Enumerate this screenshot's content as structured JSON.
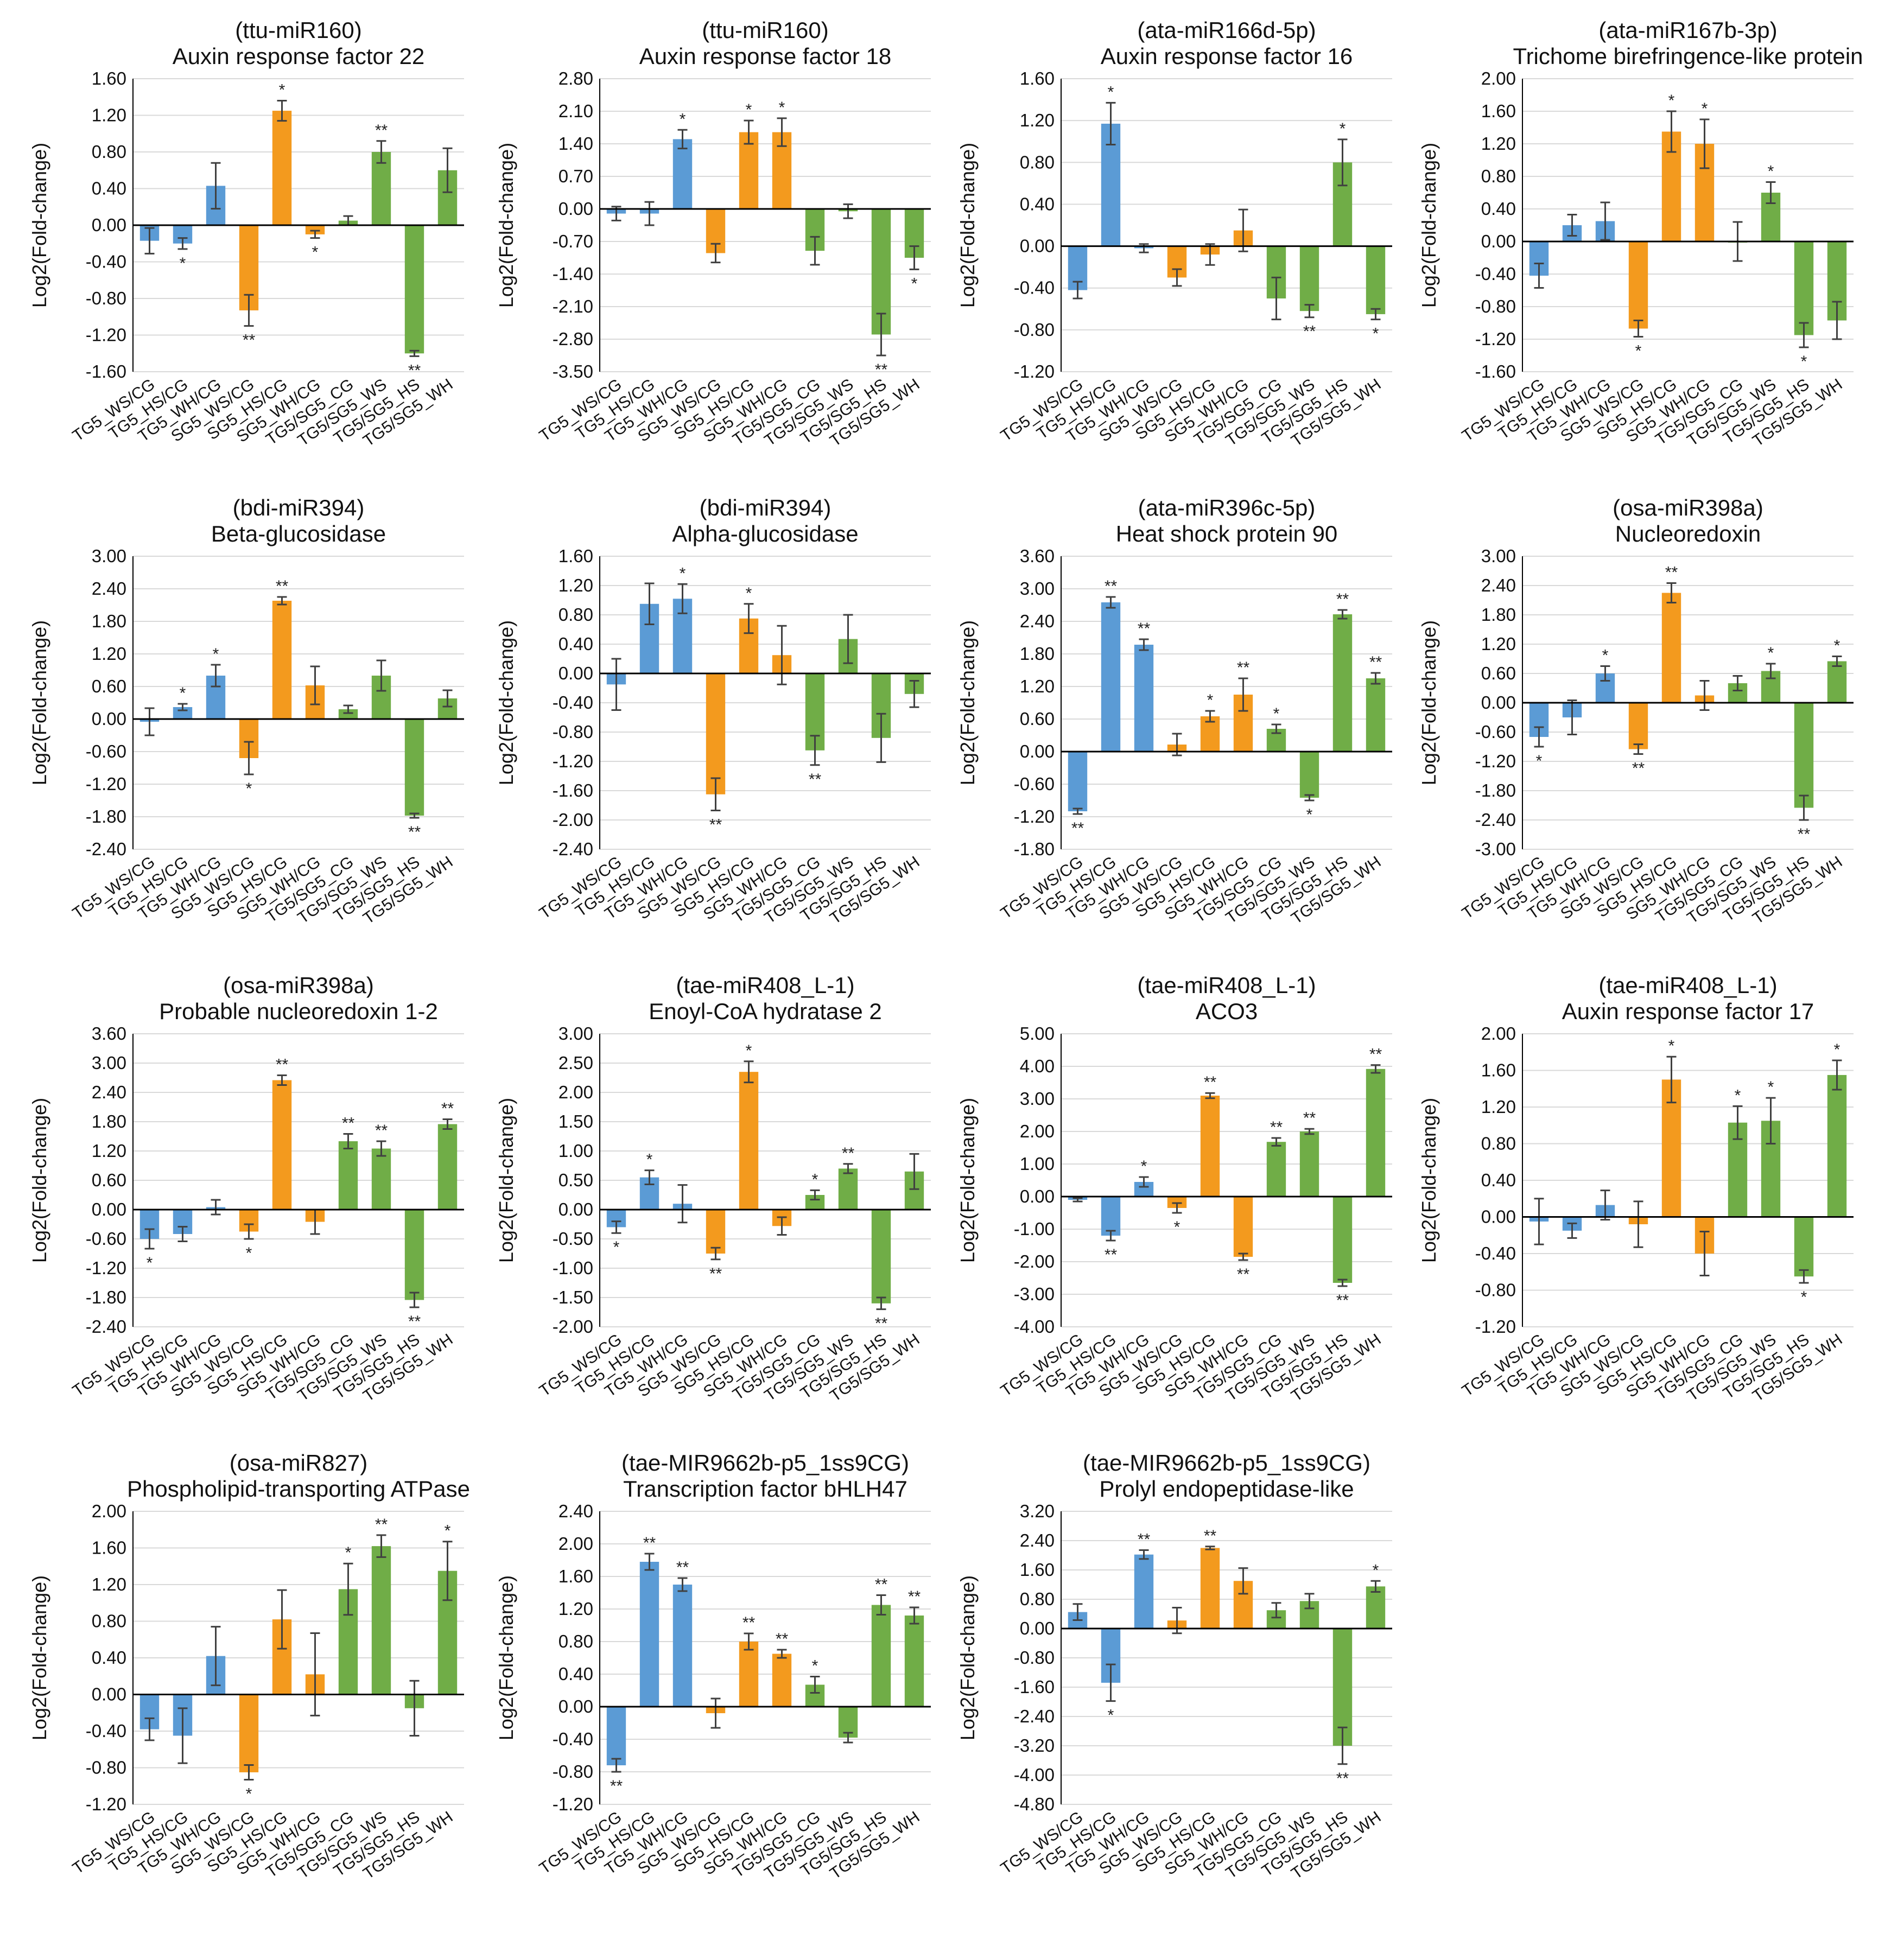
{
  "colors": {
    "blue": "#5B9BD5",
    "orange": "#F39A1E",
    "green": "#70AD47"
  },
  "ylabel": "Log2(Fold-change)",
  "chart_data": [
    {
      "type": "bar",
      "mirna": "(ttu-miR160)",
      "gene": "Auxin  response factor 22",
      "ylabel": "Log2(Fold-change)",
      "ylim": [
        -1.6,
        1.6
      ],
      "yticks": [
        "1.60",
        "1.20",
        "0.80",
        "0.40",
        "0.00",
        "-0.40",
        "-0.80",
        "-1.20",
        "-1.60"
      ],
      "categories": [
        "TG5_WS/CG",
        "TG5_HS/CG",
        "TG5_WH/CG",
        "SG5_WS/CG",
        "SG5_HS/CG",
        "SG5_WH/CG",
        "TG5/SG5_CG",
        "TG5/SG5_WS",
        "TG5/SG5_HS",
        "TG5/SG5_WH"
      ],
      "colors": [
        "blue",
        "blue",
        "blue",
        "orange",
        "orange",
        "orange",
        "green",
        "green",
        "green",
        "green"
      ],
      "values": [
        -0.17,
        -0.2,
        0.43,
        -0.93,
        1.25,
        -0.1,
        0.05,
        0.8,
        -1.4,
        0.6
      ],
      "errors": [
        0.14,
        0.06,
        0.25,
        0.17,
        0.11,
        0.04,
        0.05,
        0.12,
        0.03,
        0.24
      ],
      "sig": [
        "",
        "*",
        "",
        "**",
        "*",
        "*",
        "",
        "**",
        "**",
        ""
      ]
    },
    {
      "type": "bar",
      "mirna": "(ttu-miR160)",
      "gene": "Auxin  response factor 18",
      "ylabel": "Log2(Fold-change)",
      "ylim": [
        -3.5,
        2.8
      ],
      "yticks": [
        "2.80",
        "2.10",
        "1.40",
        "0.70",
        "0.00",
        "-0.70",
        "-1.40",
        "-2.10",
        "-2.80",
        "-3.50"
      ],
      "categories": [
        "TG5_WS/CG",
        "TG5_HS/CG",
        "TG5_WH/CG",
        "SG5_WS/CG",
        "SG5_HS/CG",
        "SG5_WH/CG",
        "TG5/SG5_CG",
        "TG5/SG5_WS",
        "TG5/SG5_HS",
        "TG5/SG5_WH"
      ],
      "colors": [
        "blue",
        "blue",
        "blue",
        "orange",
        "orange",
        "orange",
        "green",
        "green",
        "green",
        "green"
      ],
      "values": [
        -0.1,
        -0.1,
        1.5,
        -0.95,
        1.65,
        1.65,
        -0.9,
        -0.05,
        -2.7,
        -1.05
      ],
      "errors": [
        0.15,
        0.25,
        0.2,
        0.2,
        0.25,
        0.3,
        0.3,
        0.15,
        0.45,
        0.25
      ],
      "sig": [
        "",
        "",
        "*",
        "",
        "*",
        "*",
        "",
        "",
        "**",
        "*"
      ]
    },
    {
      "type": "bar",
      "mirna": "(ata-miR166d-5p)",
      "gene": "Auxin  response factor 16",
      "ylabel": "Log2(Fold-change)",
      "ylim": [
        -1.2,
        1.6
      ],
      "yticks": [
        "1.60",
        "1.20",
        "0.80",
        "0.40",
        "0.00",
        "-0.40",
        "-0.80",
        "-1.20"
      ],
      "categories": [
        "TG5_WS/CG",
        "TG5_HS/CG",
        "TG5_WH/CG",
        "SG5_WS/CG",
        "SG5_HS/CG",
        "SG5_WH/CG",
        "TG5/SG5_CG",
        "TG5/SG5_WS",
        "TG5/SG5_HS",
        "TG5/SG5_WH"
      ],
      "colors": [
        "blue",
        "blue",
        "blue",
        "orange",
        "orange",
        "orange",
        "green",
        "green",
        "green",
        "green"
      ],
      "values": [
        -0.42,
        1.17,
        -0.02,
        -0.3,
        -0.08,
        0.15,
        -0.5,
        -0.62,
        0.8,
        -0.65
      ],
      "errors": [
        0.08,
        0.2,
        0.04,
        0.08,
        0.1,
        0.2,
        0.2,
        0.06,
        0.22,
        0.05
      ],
      "sig": [
        "",
        "*",
        "",
        "",
        "",
        "",
        "",
        "**",
        "*",
        "*"
      ]
    },
    {
      "type": "bar",
      "mirna": "(ata-miR167b-3p)",
      "gene": "Trichome birefringence-like protein",
      "ylabel": "Log2(Fold-change)",
      "ylim": [
        -1.6,
        2.0
      ],
      "yticks": [
        "2.00",
        "1.60",
        "1.20",
        "0.80",
        "0.40",
        "0.00",
        "-0.40",
        "-0.80",
        "-1.20",
        "-1.60"
      ],
      "categories": [
        "TG5_WS/CG",
        "TG5_HS/CG",
        "TG5_WH/CG",
        "SG5_WS/CG",
        "SG5_HS/CG",
        "SG5_WH/CG",
        "TG5/SG5_CG",
        "TG5/SG5_WS",
        "TG5/SG5_HS",
        "TG5/SG5_WH"
      ],
      "colors": [
        "blue",
        "blue",
        "blue",
        "orange",
        "orange",
        "orange",
        "green",
        "green",
        "green",
        "green"
      ],
      "values": [
        -0.42,
        0.2,
        0.25,
        -1.07,
        1.35,
        1.2,
        0.0,
        0.6,
        -1.15,
        -0.97
      ],
      "errors": [
        0.15,
        0.13,
        0.23,
        0.1,
        0.25,
        0.3,
        0.24,
        0.13,
        0.15,
        0.23
      ],
      "sig": [
        "",
        "",
        "",
        "*",
        "*",
        "*",
        "",
        "*",
        "*",
        ""
      ]
    },
    {
      "type": "bar",
      "mirna": "(bdi-miR394)",
      "gene": "Beta-glucosidase",
      "ylabel": "Log2(Fold-change)",
      "ylim": [
        -2.4,
        3.0
      ],
      "yticks": [
        "3.00",
        "2.40",
        "1.80",
        "1.20",
        "0.60",
        "0.00",
        "-0.60",
        "-1.20",
        "-1.80",
        "-2.40"
      ],
      "categories": [
        "TG5_WS/CG",
        "TG5_HS/CG",
        "TG5_WH/CG",
        "SG5_WS/CG",
        "SG5_HS/CG",
        "SG5_WH/CG",
        "TG5/SG5_CG",
        "TG5/SG5_WS",
        "TG5/SG5_HS",
        "TG5/SG5_WH"
      ],
      "colors": [
        "blue",
        "blue",
        "blue",
        "orange",
        "orange",
        "orange",
        "green",
        "green",
        "green",
        "green"
      ],
      "values": [
        -0.05,
        0.22,
        0.8,
        -0.72,
        2.18,
        0.62,
        0.18,
        0.8,
        -1.78,
        0.38
      ],
      "errors": [
        0.25,
        0.06,
        0.2,
        0.3,
        0.07,
        0.35,
        0.07,
        0.28,
        0.04,
        0.15
      ],
      "sig": [
        "",
        "*",
        "*",
        "*",
        "**",
        "",
        "",
        "",
        "**",
        ""
      ]
    },
    {
      "type": "bar",
      "mirna": "(bdi-miR394)",
      "gene": "Alpha-glucosidase",
      "ylabel": "Log2(Fold-change)",
      "ylim": [
        -2.4,
        1.6
      ],
      "yticks": [
        "1.60",
        "1.20",
        "0.80",
        "0.40",
        "0.00",
        "-0.40",
        "-0.80",
        "-1.20",
        "-1.60",
        "-2.00",
        "-2.40"
      ],
      "categories": [
        "TG5_WS/CG",
        "TG5_HS/CG",
        "TG5_WH/CG",
        "SG5_WS/CG",
        "SG5_HS/CG",
        "SG5_WH/CG",
        "TG5/SG5_CG",
        "TG5/SG5_WS",
        "TG5/SG5_HS",
        "TG5/SG5_WH"
      ],
      "colors": [
        "blue",
        "blue",
        "blue",
        "orange",
        "orange",
        "orange",
        "green",
        "green",
        "green",
        "green"
      ],
      "values": [
        -0.15,
        0.95,
        1.02,
        -1.65,
        0.75,
        0.25,
        -1.05,
        0.47,
        -0.88,
        -0.28
      ],
      "errors": [
        0.35,
        0.28,
        0.2,
        0.22,
        0.2,
        0.4,
        0.2,
        0.33,
        0.33,
        0.18
      ],
      "sig": [
        "",
        "",
        "*",
        "**",
        "*",
        "",
        "**",
        "",
        "",
        ""
      ]
    },
    {
      "type": "bar",
      "mirna": "(ata-miR396c-5p)",
      "gene": "Heat shock protein 90",
      "ylabel": "Log2(Fold-change)",
      "ylim": [
        -1.8,
        3.6
      ],
      "yticks": [
        "3.60",
        "3.00",
        "2.40",
        "1.80",
        "1.20",
        "0.60",
        "0.00",
        "-0.60",
        "-1.20",
        "-1.80"
      ],
      "categories": [
        "TG5_WS/CG",
        "TG5_HS/CG",
        "TG5_WH/CG",
        "SG5_WS/CG",
        "SG5_HS/CG",
        "SG5_WH/CG",
        "TG5/SG5_CG",
        "TG5/SG5_WS",
        "TG5/SG5_HS",
        "TG5/SG5_WH"
      ],
      "colors": [
        "blue",
        "blue",
        "blue",
        "orange",
        "orange",
        "orange",
        "green",
        "green",
        "green",
        "green"
      ],
      "values": [
        -1.1,
        2.75,
        1.97,
        0.13,
        0.65,
        1.05,
        0.42,
        -0.85,
        2.53,
        1.35
      ],
      "errors": [
        0.05,
        0.1,
        0.1,
        0.2,
        0.1,
        0.3,
        0.08,
        0.05,
        0.08,
        0.1
      ],
      "sig": [
        "**",
        "**",
        "**",
        "",
        "*",
        "**",
        "*",
        "*",
        "**",
        "**"
      ]
    },
    {
      "type": "bar",
      "mirna": "(osa-miR398a)",
      "gene": "Nucleoredoxin",
      "ylabel": "Log2(Fold-change)",
      "ylim": [
        -3.0,
        3.0
      ],
      "yticks": [
        "3.00",
        "2.40",
        "1.80",
        "1.20",
        "0.60",
        "0.00",
        "-0.60",
        "-1.20",
        "-1.80",
        "-2.40",
        "-3.00"
      ],
      "categories": [
        "TG5_WS/CG",
        "TG5_HS/CG",
        "TG5_WH/CG",
        "SG5_WS/CG",
        "SG5_HS/CG",
        "SG5_WH/CG",
        "TG5/SG5_CG",
        "TG5/SG5_WS",
        "TG5/SG5_HS",
        "TG5/SG5_WH"
      ],
      "colors": [
        "blue",
        "blue",
        "blue",
        "orange",
        "orange",
        "orange",
        "green",
        "green",
        "green",
        "green"
      ],
      "values": [
        -0.7,
        -0.3,
        0.6,
        -0.95,
        2.25,
        0.15,
        0.4,
        0.65,
        -2.15,
        0.85
      ],
      "errors": [
        0.2,
        0.35,
        0.15,
        0.1,
        0.2,
        0.3,
        0.15,
        0.15,
        0.25,
        0.1
      ],
      "sig": [
        "*",
        "",
        "*",
        "**",
        "**",
        "",
        "",
        "*",
        "**",
        "*"
      ]
    },
    {
      "type": "bar",
      "mirna": "(osa-miR398a)",
      "gene": "Probable nucleoredoxin  1-2",
      "ylabel": "Log2(Fold-change)",
      "ylim": [
        -2.4,
        3.6
      ],
      "yticks": [
        "3.60",
        "3.00",
        "2.40",
        "1.80",
        "1.20",
        "0.60",
        "0.00",
        "-0.60",
        "-1.20",
        "-1.80",
        "-2.40"
      ],
      "categories": [
        "TG5_WS/CG",
        "TG5_HS/CG",
        "TG5_WH/CG",
        "SG5_WS/CG",
        "SG5_HS/CG",
        "SG5_WH/CG",
        "TG5/SG5_CG",
        "TG5/SG5_WS",
        "TG5/SG5_HS",
        "TG5/SG5_WH"
      ],
      "colors": [
        "blue",
        "blue",
        "blue",
        "orange",
        "orange",
        "orange",
        "green",
        "green",
        "green",
        "green"
      ],
      "values": [
        -0.6,
        -0.5,
        0.05,
        -0.45,
        2.65,
        -0.25,
        1.4,
        1.25,
        -1.85,
        1.75
      ],
      "errors": [
        0.2,
        0.15,
        0.15,
        0.15,
        0.1,
        0.25,
        0.15,
        0.15,
        0.15,
        0.1
      ],
      "sig": [
        "*",
        "",
        "",
        "*",
        "**",
        "",
        "**",
        "**",
        "**",
        "**"
      ]
    },
    {
      "type": "bar",
      "mirna": "(tae-miR408_L-1)",
      "gene": "Enoyl-CoA hydratase 2",
      "ylabel": "Log2(Fold-change)",
      "ylim": [
        -2.0,
        3.0
      ],
      "yticks": [
        "3.00",
        "2.50",
        "2.00",
        "1.50",
        "1.00",
        "0.50",
        "0.00",
        "-0.50",
        "-1.00",
        "-1.50",
        "-2.00"
      ],
      "categories": [
        "TG5_WS/CG",
        "TG5_HS/CG",
        "TG5_WH/CG",
        "SG5_WS/CG",
        "SG5_HS/CG",
        "SG5_WH/CG",
        "TG5/SG5_CG",
        "TG5/SG5_WS",
        "TG5/SG5_HS",
        "TG5/SG5_WH"
      ],
      "colors": [
        "blue",
        "blue",
        "blue",
        "orange",
        "orange",
        "orange",
        "green",
        "green",
        "green",
        "green"
      ],
      "values": [
        -0.3,
        0.55,
        0.1,
        -0.75,
        2.35,
        -0.28,
        0.25,
        0.7,
        -1.6,
        0.65
      ],
      "errors": [
        0.1,
        0.12,
        0.32,
        0.1,
        0.18,
        0.15,
        0.08,
        0.08,
        0.1,
        0.3
      ],
      "sig": [
        "*",
        "*",
        "",
        "**",
        "*",
        "",
        "*",
        "**",
        "**",
        ""
      ]
    },
    {
      "type": "bar",
      "mirna": "(tae-miR408_L-1)",
      "gene": "ACO3",
      "ylabel": "Log2(Fold-change)",
      "ylim": [
        -4.0,
        5.0
      ],
      "yticks": [
        "5.00",
        "4.00",
        "3.00",
        "2.00",
        "1.00",
        "0.00",
        "-1.00",
        "-2.00",
        "-3.00",
        "-4.00"
      ],
      "categories": [
        "TG5_WS/CG",
        "TG5_HS/CG",
        "TG5_WH/CG",
        "SG5_WS/CG",
        "SG5_HS/CG",
        "SG5_WH/CG",
        "TG5/SG5_CG",
        "TG5/SG5_WS",
        "TG5/SG5_HS",
        "TG5/SG5_WH"
      ],
      "colors": [
        "blue",
        "blue",
        "blue",
        "orange",
        "orange",
        "orange",
        "green",
        "green",
        "green",
        "green"
      ],
      "values": [
        -0.1,
        -1.2,
        0.45,
        -0.35,
        3.1,
        -1.85,
        1.68,
        2.0,
        -2.65,
        3.92
      ],
      "errors": [
        0.05,
        0.15,
        0.15,
        0.15,
        0.08,
        0.1,
        0.12,
        0.08,
        0.1,
        0.12
      ],
      "sig": [
        "",
        "**",
        "*",
        "*",
        "**",
        "**",
        "**",
        "**",
        "**",
        "**"
      ]
    },
    {
      "type": "bar",
      "mirna": "(tae-miR408_L-1)",
      "gene": "Auxin  response factor 17",
      "ylabel": "Log2(Fold-change)",
      "ylim": [
        -1.2,
        2.0
      ],
      "yticks": [
        "2.00",
        "1.60",
        "1.20",
        "0.80",
        "0.40",
        "0.00",
        "-0.40",
        "-0.80",
        "-1.20"
      ],
      "categories": [
        "TG5_WS/CG",
        "TG5_HS/CG",
        "TG5_WH/CG",
        "SG5_WS/CG",
        "SG5_HS/CG",
        "SG5_WH/CG",
        "TG5/SG5_CG",
        "TG5/SG5_WS",
        "TG5/SG5_HS",
        "TG5/SG5_WH"
      ],
      "colors": [
        "blue",
        "blue",
        "blue",
        "orange",
        "orange",
        "orange",
        "green",
        "green",
        "green",
        "green"
      ],
      "values": [
        -0.05,
        -0.15,
        0.13,
        -0.08,
        1.5,
        -0.4,
        1.03,
        1.05,
        -0.65,
        1.55
      ],
      "errors": [
        0.25,
        0.08,
        0.16,
        0.25,
        0.25,
        0.24,
        0.18,
        0.25,
        0.07,
        0.16
      ],
      "sig": [
        "",
        "",
        "",
        "",
        "*",
        "",
        "*",
        "*",
        "*",
        "*"
      ]
    },
    {
      "type": "bar",
      "mirna": "(osa-miR827)",
      "gene": "Phospholipid-transporting ATPase",
      "ylabel": "Log2(Fold-change)",
      "ylim": [
        -1.2,
        2.0
      ],
      "yticks": [
        "2.00",
        "1.60",
        "1.20",
        "0.80",
        "0.40",
        "0.00",
        "-0.40",
        "-0.80",
        "-1.20"
      ],
      "categories": [
        "TG5_WS/CG",
        "TG5_HS/CG",
        "TG5_WH/CG",
        "SG5_WS/CG",
        "SG5_HS/CG",
        "SG5_WH/CG",
        "TG5/SG5_CG",
        "TG5/SG5_WS",
        "TG5/SG5_HS",
        "TG5/SG5_WH"
      ],
      "colors": [
        "blue",
        "blue",
        "blue",
        "orange",
        "orange",
        "orange",
        "green",
        "green",
        "green",
        "green"
      ],
      "values": [
        -0.38,
        -0.45,
        0.42,
        -0.85,
        0.82,
        0.22,
        1.15,
        1.62,
        -0.15,
        1.35
      ],
      "errors": [
        0.12,
        0.3,
        0.32,
        0.08,
        0.32,
        0.45,
        0.28,
        0.12,
        0.3,
        0.32
      ],
      "sig": [
        "",
        "",
        "",
        "*",
        "",
        "",
        "*",
        "**",
        "",
        "*"
      ]
    },
    {
      "type": "bar",
      "mirna": "(tae-MIR9662b-p5_1ss9CG)",
      "gene": "Transcription factor bHLH47",
      "ylabel": "Log2(Fold-change)",
      "ylim": [
        -1.2,
        2.4
      ],
      "yticks": [
        "2.40",
        "2.00",
        "1.60",
        "1.20",
        "0.80",
        "0.40",
        "0.00",
        "-0.40",
        "-0.80",
        "-1.20"
      ],
      "categories": [
        "TG5_WS/CG",
        "TG5_HS/CG",
        "TG5_WH/CG",
        "SG5_WS/CG",
        "SG5_HS/CG",
        "SG5_WH/CG",
        "TG5/SG5_CG",
        "TG5/SG5_WS",
        "TG5/SG5_HS",
        "TG5/SG5_WH"
      ],
      "colors": [
        "blue",
        "blue",
        "blue",
        "orange",
        "orange",
        "orange",
        "green",
        "green",
        "green",
        "green"
      ],
      "values": [
        -0.72,
        1.78,
        1.5,
        -0.08,
        0.8,
        0.65,
        0.27,
        -0.38,
        1.25,
        1.12
      ],
      "errors": [
        0.08,
        0.1,
        0.08,
        0.18,
        0.1,
        0.05,
        0.1,
        0.06,
        0.12,
        0.1
      ],
      "sig": [
        "**",
        "**",
        "**",
        "",
        "**",
        "**",
        "*",
        "",
        "**",
        "**"
      ]
    },
    {
      "type": "bar",
      "mirna": "(tae-MIR9662b-p5_1ss9CG)",
      "gene": "Prolyl endopeptidase-like",
      "ylabel": "Log2(Fold-change)",
      "ylim": [
        -4.8,
        3.2
      ],
      "yticks": [
        "3.20",
        "2.40",
        "1.60",
        "0.80",
        "0.00",
        "-0.80",
        "-1.60",
        "-2.40",
        "-3.20",
        "-4.00",
        "-4.80"
      ],
      "categories": [
        "TG5_WS/CG",
        "TG5_HS/CG",
        "TG5_WH/CG",
        "SG5_WS/CG",
        "SG5_HS/CG",
        "SG5_WH/CG",
        "TG5/SG5_CG",
        "TG5/SG5_WS",
        "TG5/SG5_HS",
        "TG5/SG5_WH"
      ],
      "colors": [
        "blue",
        "blue",
        "blue",
        "orange",
        "orange",
        "orange",
        "green",
        "green",
        "green",
        "green"
      ],
      "values": [
        0.45,
        -1.48,
        2.02,
        0.22,
        2.2,
        1.3,
        0.5,
        0.75,
        -3.2,
        1.15
      ],
      "errors": [
        0.22,
        0.5,
        0.12,
        0.35,
        0.04,
        0.35,
        0.2,
        0.2,
        0.5,
        0.15
      ],
      "sig": [
        "",
        "*",
        "**",
        "",
        "**",
        "",
        "",
        "",
        "**",
        "*"
      ]
    }
  ]
}
